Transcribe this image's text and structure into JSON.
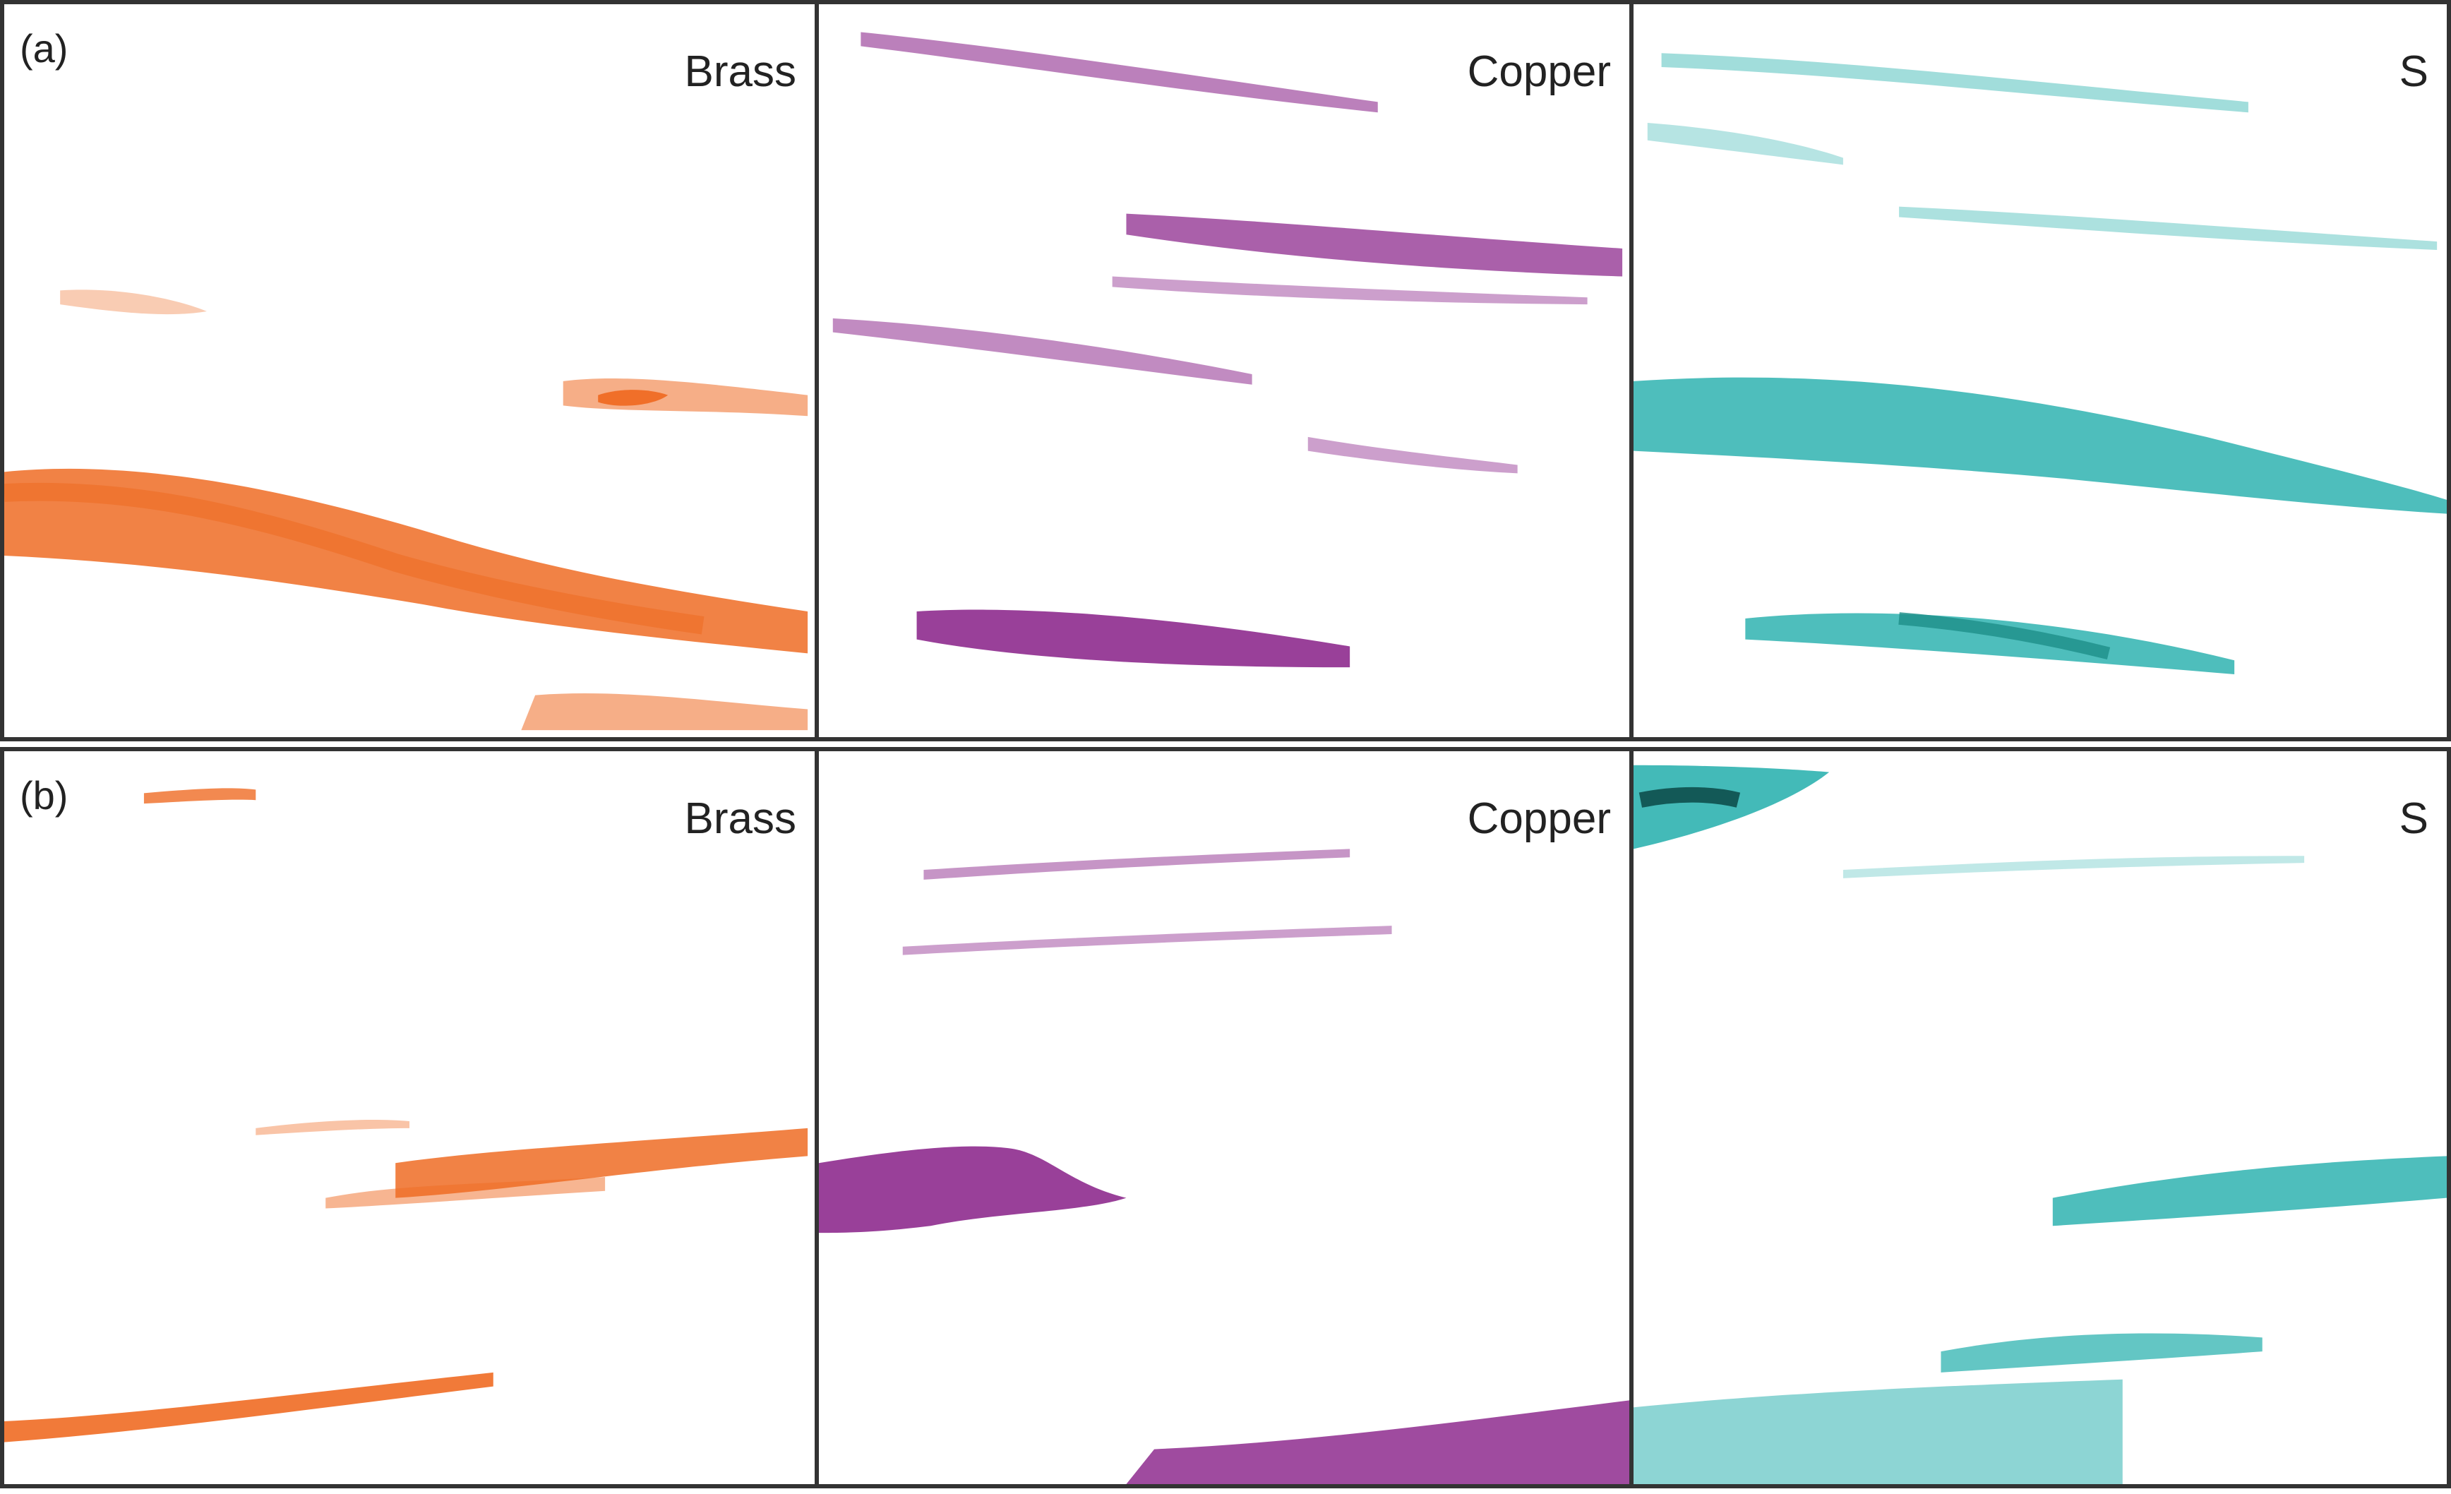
{
  "figure": {
    "rows": [
      {
        "label": "(a)",
        "panels": [
          {
            "label": "Brass",
            "color": "#ef6c24"
          },
          {
            "label": "Copper",
            "color": "#8e2b8e"
          },
          {
            "label": "S",
            "color": "#2fb3b0"
          }
        ]
      },
      {
        "label": "(b)",
        "panels": [
          {
            "label": "Brass",
            "color": "#ef6c24"
          },
          {
            "label": "Copper",
            "color": "#8e2b8e"
          },
          {
            "label": "S",
            "color": "#2fb3b0"
          }
        ]
      }
    ]
  }
}
